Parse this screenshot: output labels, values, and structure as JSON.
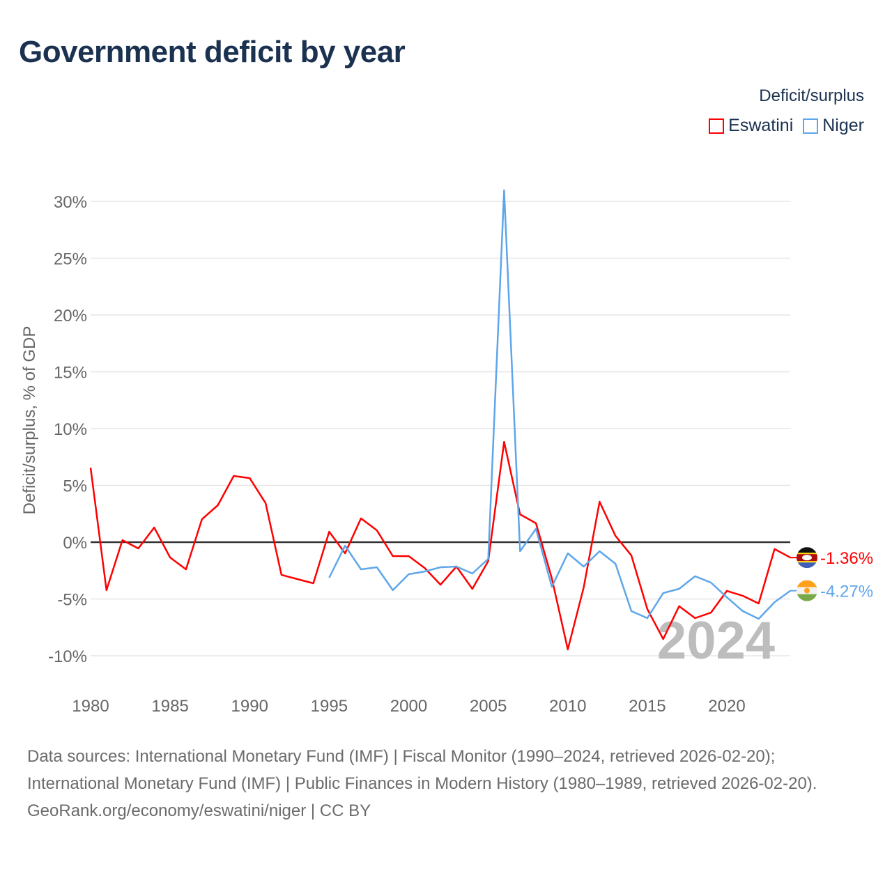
{
  "chart_data": {
    "type": "line",
    "title": "Government deficit by year",
    "ylabel": "Deficit/surplus, % of GDP",
    "xlabel": "",
    "xlim": [
      1980,
      2024
    ],
    "ylim": [
      -12,
      31
    ],
    "yticks": [
      -10,
      -5,
      0,
      5,
      10,
      15,
      20,
      25,
      30
    ],
    "ytick_labels": [
      "-10%",
      "-5%",
      "0%",
      "5%",
      "10%",
      "15%",
      "20%",
      "25%",
      "30%"
    ],
    "xticks": [
      1980,
      1985,
      1990,
      1995,
      2000,
      2005,
      2010,
      2015,
      2020
    ],
    "xtick_labels": [
      "1980",
      "1985",
      "1990",
      "1995",
      "2000",
      "2005",
      "2010",
      "2015",
      "2020"
    ],
    "grid": true,
    "legend_title": "Deficit/surplus",
    "legend_position": "top-right",
    "year_watermark": "2024",
    "series": [
      {
        "name": "Eswatini",
        "color": "#ff0000",
        "end_label": "-1.36%",
        "flag": "eswatini-flag",
        "x_start": 1980,
        "values": [
          6.56,
          -4.23,
          0.18,
          -0.55,
          1.29,
          -1.35,
          -2.39,
          2.02,
          3.25,
          5.83,
          5.64,
          3.44,
          -2.88,
          -3.25,
          -3.62,
          0.92,
          -0.98,
          2.09,
          1.04,
          -1.23,
          -1.23,
          -2.27,
          -3.74,
          -2.15,
          -4.11,
          -1.66,
          8.83,
          2.45,
          1.66,
          -3.19,
          -9.45,
          -3.99,
          3.56,
          0.55,
          -1.17,
          -5.89,
          -8.53,
          -5.64,
          -6.69,
          -6.2,
          -4.29,
          -4.72,
          -5.4,
          -0.61,
          -1.36
        ]
      },
      {
        "name": "Niger",
        "color": "#5ea6ea",
        "end_label": "-4.27%",
        "flag": "niger-flag",
        "x_start": 1995,
        "values": [
          -3.13,
          -0.31,
          -2.39,
          -2.21,
          -4.23,
          -2.82,
          -2.58,
          -2.21,
          -2.15,
          -2.76,
          -1.47,
          30.98,
          -0.8,
          1.17,
          -3.93,
          -0.98,
          -2.15,
          -0.8,
          -1.9,
          -6.07,
          -6.69,
          -4.48,
          -4.11,
          -3.0,
          -3.56,
          -4.85,
          -6.07,
          -6.75,
          -5.28,
          -4.27
        ]
      }
    ]
  },
  "footer": {
    "sources_line1": "Data sources: International Monetary Fund (IMF) | Fiscal Monitor (1990–2024, retrieved 2026-02-20);",
    "sources_line2": "International Monetary Fund (IMF) | Public Finances in Modern History (1980–1989, retrieved 2026-02-20).",
    "credit": "GeoRank.org/economy/eswatini/niger | CC BY"
  }
}
